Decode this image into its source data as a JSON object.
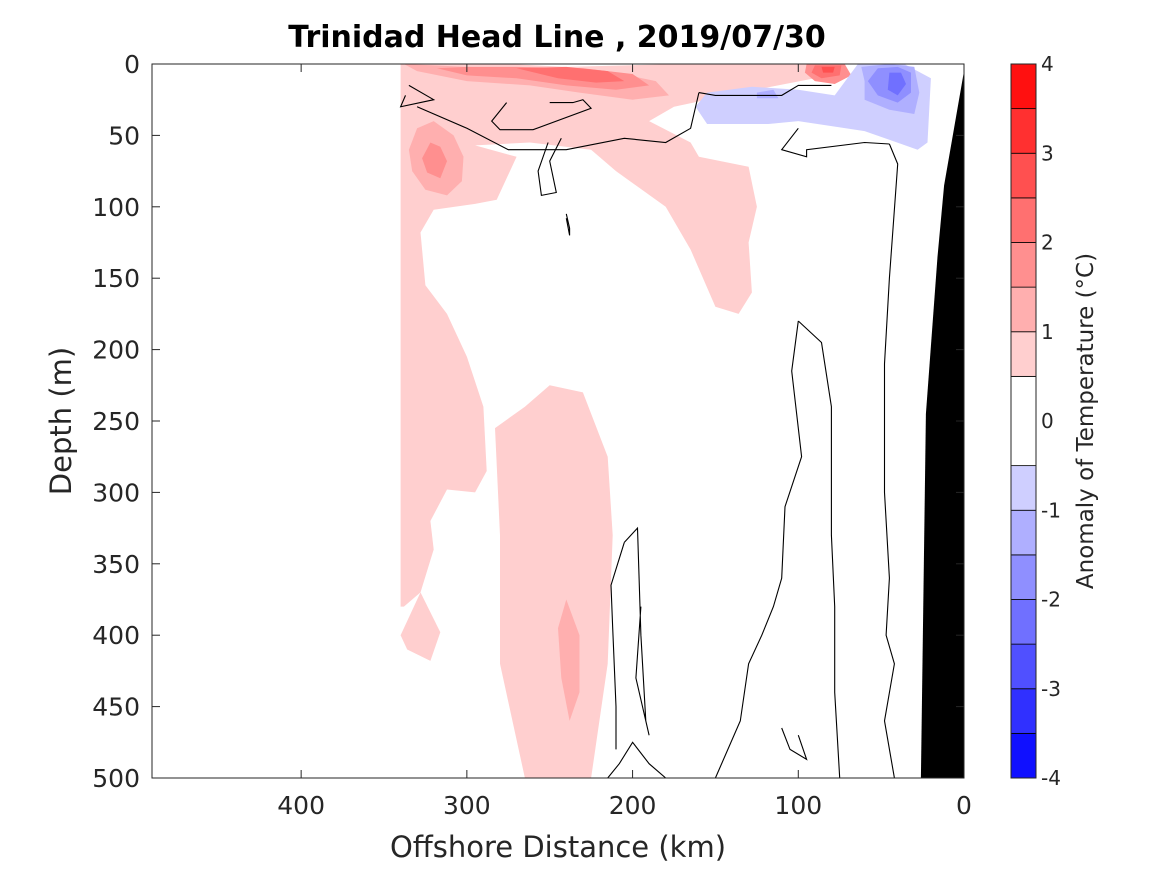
{
  "chart_data": {
    "type": "heatmap",
    "title": "Trinidad Head Line , 2019/07/30",
    "xlabel": "Offshore Distance (km)",
    "ylabel": "Depth (m)",
    "xlim": [
      490,
      0
    ],
    "ylim": [
      0,
      500
    ],
    "x_reversed": true,
    "y_reversed": true,
    "xticks": [
      400,
      300,
      200,
      100,
      0
    ],
    "yticks": [
      0,
      50,
      100,
      150,
      200,
      250,
      300,
      350,
      400,
      450,
      500
    ],
    "colorbar": {
      "label": "Anomaly of Temperature (°C)",
      "range": [
        -4,
        4
      ],
      "levels": [
        -4,
        -3.5,
        -3,
        -2.5,
        -2,
        -1.5,
        -1,
        -0.5,
        0.5,
        1,
        1.5,
        2,
        2.5,
        3,
        3.5,
        4
      ],
      "ticks": [
        4,
        3,
        2,
        1,
        0,
        -1,
        -2,
        -3,
        -4
      ]
    },
    "regions": [
      {
        "anomaly": 0.75,
        "points": [
          [
            340,
            0
          ],
          [
            275,
            0
          ],
          [
            240,
            2
          ],
          [
            172,
            0
          ],
          [
            80,
            0
          ],
          [
            90,
            10
          ],
          [
            135,
            20
          ],
          [
            175,
            30
          ],
          [
            190,
            40
          ],
          [
            165,
            55
          ],
          [
            160,
            65
          ],
          [
            130,
            72
          ],
          [
            125,
            100
          ],
          [
            130,
            125
          ],
          [
            128,
            160
          ],
          [
            136,
            175
          ],
          [
            150,
            170
          ],
          [
            165,
            130
          ],
          [
            180,
            100
          ],
          [
            210,
            75
          ],
          [
            225,
            60
          ],
          [
            262,
            55
          ],
          [
            295,
            57
          ],
          [
            270,
            65
          ],
          [
            282,
            95
          ],
          [
            295,
            98
          ],
          [
            320,
            102
          ],
          [
            328,
            118
          ],
          [
            325,
            155
          ],
          [
            312,
            175
          ],
          [
            300,
            205
          ],
          [
            290,
            240
          ],
          [
            288,
            285
          ],
          [
            295,
            300
          ],
          [
            312,
            298
          ],
          [
            322,
            320
          ],
          [
            320,
            340
          ],
          [
            328,
            370
          ],
          [
            338,
            380
          ],
          [
            340,
            380
          ]
        ]
      },
      {
        "anomaly": 0.75,
        "points": [
          [
            328,
            370
          ],
          [
            316,
            398
          ],
          [
            322,
            418
          ],
          [
            336,
            410
          ],
          [
            340,
            400
          ]
        ]
      },
      {
        "anomaly": 0.75,
        "points": [
          [
            265,
            240
          ],
          [
            283,
            255
          ],
          [
            280,
            330
          ],
          [
            280,
            420
          ],
          [
            265,
            500
          ],
          [
            225,
            500
          ],
          [
            215,
            420
          ],
          [
            212,
            330
          ],
          [
            215,
            275
          ],
          [
            230,
            230
          ],
          [
            250,
            225
          ]
        ]
      },
      {
        "anomaly": 1.25,
        "points": [
          [
            320,
            40
          ],
          [
            330,
            45
          ],
          [
            335,
            60
          ],
          [
            333,
            75
          ],
          [
            325,
            88
          ],
          [
            312,
            92
          ],
          [
            303,
            82
          ],
          [
            302,
            65
          ],
          [
            308,
            50
          ]
        ]
      },
      {
        "anomaly": 1.75,
        "points": [
          [
            322,
            55
          ],
          [
            316,
            58
          ],
          [
            312,
            68
          ],
          [
            316,
            80
          ],
          [
            324,
            76
          ],
          [
            327,
            66
          ]
        ]
      },
      {
        "anomaly": 1.25,
        "points": [
          [
            240,
            375
          ],
          [
            245,
            395
          ],
          [
            243,
            430
          ],
          [
            238,
            460
          ],
          [
            232,
            440
          ],
          [
            232,
            400
          ]
        ]
      },
      {
        "anomaly": 1.25,
        "points": [
          [
            338,
            0
          ],
          [
            330,
            5
          ],
          [
            300,
            12
          ],
          [
            262,
            15
          ],
          [
            232,
            20
          ],
          [
            200,
            25
          ],
          [
            178,
            22
          ],
          [
            186,
            12
          ],
          [
            215,
            5
          ],
          [
            255,
            3
          ],
          [
            300,
            2
          ]
        ]
      },
      {
        "anomaly": 1.75,
        "points": [
          [
            318,
            3
          ],
          [
            300,
            8
          ],
          [
            270,
            10
          ],
          [
            240,
            15
          ],
          [
            210,
            18
          ],
          [
            190,
            15
          ],
          [
            200,
            7
          ],
          [
            230,
            3
          ],
          [
            270,
            2
          ],
          [
            300,
            2
          ]
        ]
      },
      {
        "anomaly": 2.25,
        "points": [
          [
            270,
            3
          ],
          [
            245,
            10
          ],
          [
            222,
            13
          ],
          [
            205,
            12
          ],
          [
            215,
            5
          ],
          [
            240,
            2
          ]
        ]
      },
      {
        "anomaly": 1.75,
        "points": [
          [
            95,
            0
          ],
          [
            72,
            0
          ],
          [
            68,
            8
          ],
          [
            78,
            14
          ],
          [
            90,
            12
          ],
          [
            96,
            6
          ]
        ]
      },
      {
        "anomaly": 2.25,
        "points": [
          [
            90,
            1
          ],
          [
            74,
            1
          ],
          [
            75,
            8
          ],
          [
            86,
            10
          ],
          [
            92,
            6
          ]
        ]
      },
      {
        "anomaly": 2.75,
        "points": [
          [
            86,
            2
          ],
          [
            78,
            2
          ],
          [
            79,
            6
          ],
          [
            85,
            6
          ]
        ]
      },
      {
        "anomaly": -0.75,
        "points": [
          [
            64,
            0
          ],
          [
            36,
            0
          ],
          [
            20,
            10
          ],
          [
            22,
            55
          ],
          [
            28,
            60
          ],
          [
            60,
            47
          ],
          [
            100,
            40
          ],
          [
            118,
            42
          ],
          [
            155,
            42
          ],
          [
            162,
            30
          ],
          [
            155,
            20
          ],
          [
            128,
            16
          ],
          [
            100,
            18
          ],
          [
            78,
            22
          ]
        ]
      },
      {
        "anomaly": -1.25,
        "points": [
          [
            115,
            18
          ],
          [
            125,
            20
          ],
          [
            125,
            24
          ],
          [
            112,
            24
          ]
        ]
      },
      {
        "anomaly": -1.25,
        "points": [
          [
            62,
            2
          ],
          [
            45,
            0
          ],
          [
            30,
            2
          ],
          [
            27,
            20
          ],
          [
            30,
            35
          ],
          [
            45,
            32
          ],
          [
            60,
            25
          ],
          [
            60,
            12
          ]
        ]
      },
      {
        "anomaly": -1.75,
        "points": [
          [
            52,
            3
          ],
          [
            40,
            2
          ],
          [
            32,
            6
          ],
          [
            32,
            20
          ],
          [
            40,
            27
          ],
          [
            52,
            22
          ],
          [
            58,
            12
          ]
        ]
      },
      {
        "anomaly": -2.25,
        "points": [
          [
            45,
            6
          ],
          [
            38,
            6
          ],
          [
            35,
            14
          ],
          [
            40,
            22
          ],
          [
            46,
            18
          ]
        ]
      }
    ],
    "contours": [
      {
        "level": 0,
        "points": [
          [
            250,
            27
          ],
          [
            236,
            27
          ],
          [
            230,
            25
          ],
          [
            225,
            31
          ],
          [
            260,
            46
          ],
          [
            280,
            46
          ],
          [
            285,
            40
          ],
          [
            276,
            27
          ]
        ]
      },
      {
        "level": 0,
        "points": [
          [
            243,
            52
          ],
          [
            250,
            68
          ],
          [
            246,
            90
          ],
          [
            255,
            92
          ],
          [
            257,
            75
          ],
          [
            251,
            55
          ]
        ]
      },
      {
        "level": 0,
        "points": [
          [
            240,
            105
          ],
          [
            238,
            115
          ],
          [
            238,
            120
          ],
          [
            240,
            108
          ]
        ]
      },
      {
        "level": 0,
        "points": [
          [
            335,
            15
          ],
          [
            320,
            25
          ],
          [
            340,
            30
          ],
          [
            337,
            22
          ]
        ]
      },
      {
        "level": 0,
        "points": [
          [
            160,
            20
          ],
          [
            165,
            45
          ],
          [
            180,
            55
          ],
          [
            205,
            52
          ],
          [
            240,
            60
          ],
          [
            275,
            60
          ],
          [
            300,
            45
          ],
          [
            330,
            30
          ]
        ]
      },
      {
        "level": 0,
        "points": [
          [
            80,
            15
          ],
          [
            100,
            15
          ],
          [
            110,
            22
          ],
          [
            150,
            22
          ],
          [
            160,
            20
          ]
        ]
      },
      {
        "level": 0,
        "points": [
          [
            100,
            45
          ],
          [
            110,
            60
          ],
          [
            95,
            65
          ],
          [
            95,
            60
          ],
          [
            60,
            55
          ],
          [
            45,
            56
          ]
        ]
      },
      {
        "level": 0,
        "points": [
          [
            100,
            180
          ],
          [
            104,
            215
          ],
          [
            98,
            275
          ],
          [
            108,
            310
          ],
          [
            110,
            360
          ],
          [
            115,
            380
          ],
          [
            122,
            400
          ],
          [
            130,
            420
          ],
          [
            135,
            460
          ],
          [
            150,
            500
          ]
        ]
      },
      {
        "level": 0,
        "points": [
          [
            100,
            180
          ],
          [
            86,
            195
          ],
          [
            80,
            240
          ],
          [
            80,
            330
          ],
          [
            78,
            380
          ],
          [
            78,
            440
          ],
          [
            75,
            500
          ]
        ]
      },
      {
        "level": 0,
        "points": [
          [
            45,
            56
          ],
          [
            40,
            70
          ],
          [
            45,
            150
          ],
          [
            48,
            210
          ],
          [
            48,
            270
          ],
          [
            48,
            300
          ],
          [
            45,
            360
          ],
          [
            47,
            400
          ],
          [
            42,
            420
          ],
          [
            48,
            460
          ],
          [
            42,
            500
          ]
        ]
      },
      {
        "level": 0,
        "points": [
          [
            205,
            335
          ],
          [
            197,
            325
          ],
          [
            195,
            400
          ],
          [
            192,
            460
          ],
          [
            190,
            470
          ],
          [
            198,
            430
          ],
          [
            195,
            380
          ]
        ]
      },
      {
        "level": 0,
        "points": [
          [
            205,
            335
          ],
          [
            213,
            365
          ],
          [
            212,
            395
          ],
          [
            210,
            450
          ],
          [
            210,
            480
          ]
        ]
      },
      {
        "level": 0,
        "points": [
          [
            180,
            500
          ],
          [
            190,
            490
          ],
          [
            200,
            475
          ],
          [
            208,
            490
          ],
          [
            215,
            500
          ]
        ]
      },
      {
        "level": 0,
        "points": [
          [
            100,
            470
          ],
          [
            95,
            487
          ],
          [
            105,
            480
          ],
          [
            110,
            465
          ]
        ]
      }
    ],
    "land_mask": [
      [
        0,
        5
      ],
      [
        12,
        85
      ],
      [
        16,
        135
      ],
      [
        23,
        245
      ],
      [
        26,
        500
      ],
      [
        0,
        500
      ]
    ]
  }
}
